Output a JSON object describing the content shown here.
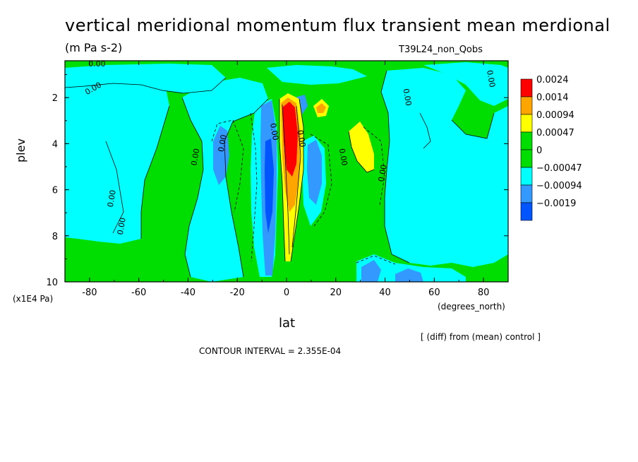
{
  "chart_data": {
    "type": "heatmap",
    "title": "vertical meridional momentum flux transient mean merdional",
    "units_label": "(m Pa s-2)",
    "run_label": "T39L24_non_Qobs",
    "xlabel": "lat",
    "x_unit_label": "(degrees_north)",
    "ylabel": "plev",
    "y_unit_label": "(x1E4 Pa)",
    "xlim": [
      -90,
      90
    ],
    "ylim": [
      10,
      0.4
    ],
    "x_ticks": [
      "-80",
      "-60",
      "-40",
      "-20",
      "0",
      "20",
      "40",
      "60",
      "80"
    ],
    "y_ticks": [
      "2",
      "4",
      "6",
      "8",
      "10"
    ],
    "contour_interval_text": "CONTOUR INTERVAL = 2.355E-04",
    "diff_note": "[ (diff) from (mean) control ]",
    "contour_labels": [
      "0.00",
      "0.00",
      "0.00",
      "0.00",
      "0.00",
      "0.00",
      "0.00",
      "0.00",
      "0.00",
      "0.00",
      "0.00",
      "0.00"
    ],
    "legend": [
      {
        "label": "0.0024",
        "color": "#ff0000"
      },
      {
        "label": "0.0014",
        "color": "#ffa500"
      },
      {
        "label": "0.00094",
        "color": "#ffff00"
      },
      {
        "label": "0.00047",
        "color": "#00dd00"
      },
      {
        "label": "0",
        "color": "#00dd00"
      },
      {
        "label": "−0.00047",
        "color": "#00ffff"
      },
      {
        "label": "−0.00094",
        "color": "#3399ff"
      },
      {
        "label": "−0.0019",
        "color": "#0055ff"
      }
    ],
    "colors": {
      "neg1": "#00ffff",
      "neg2": "#3399ff",
      "neg3": "#0055ff",
      "zero": "#00dd00",
      "pos1": "#ffff00",
      "pos2": "#ffa500",
      "pos3": "#ff0000"
    }
  }
}
